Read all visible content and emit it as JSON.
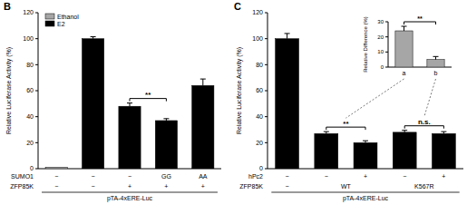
{
  "chart_data": [
    {
      "type": "bar",
      "title": "B",
      "ylabel": "Relative Luciferase Activity (%)",
      "categories": [
        null,
        null,
        null,
        null,
        null
      ],
      "series": [
        {
          "name": "Ethanol",
          "color": "#a6a6a6",
          "values": [
            1,
            null,
            null,
            null,
            null
          ],
          "errors": [
            null,
            null,
            null,
            null,
            null
          ]
        },
        {
          "name": "E2",
          "color": "#000000",
          "values": [
            null,
            100,
            48,
            37,
            64
          ],
          "errors": [
            null,
            1.5,
            2.5,
            1.5,
            5
          ]
        }
      ],
      "ylim": [
        0,
        120
      ],
      "yticks": [
        0,
        20,
        40,
        60,
        80,
        100,
        120
      ],
      "legend": "upper left",
      "annotations": [
        {
          "text": "**",
          "from": 2,
          "to": 3
        }
      ],
      "conditions": [
        {
          "label": "SUMO1",
          "values": [
            "−",
            "−",
            "−",
            "GG",
            "AA"
          ]
        },
        {
          "label": "ZFP85K",
          "values": [
            "−",
            "−",
            "+",
            "+",
            "+"
          ]
        }
      ],
      "construct": "pTA-4xERE-Luc"
    },
    {
      "type": "bar",
      "title": "C",
      "ylabel": "Relative Luciferase Activity (%)",
      "categories": [
        null,
        null,
        null,
        null,
        null
      ],
      "values": [
        100,
        27,
        20,
        28,
        27
      ],
      "errors": [
        4,
        1.5,
        1.5,
        1.5,
        1.5
      ],
      "color": "#000000",
      "ylim": [
        0,
        120
      ],
      "yticks": [
        0,
        20,
        40,
        60,
        80,
        100,
        120
      ],
      "annotations": [
        {
          "text": "**",
          "from": 1,
          "to": 2
        },
        {
          "text": "n.s.",
          "from": 3,
          "to": 4
        }
      ],
      "conditions": [
        {
          "label": "hPc2",
          "values": [
            "−",
            "−",
            "+",
            "−",
            "+"
          ]
        },
        {
          "label": "ZFP85K",
          "cells": [
            {
              "text": "−",
              "from": 0,
              "to": 0
            },
            {
              "text": "WT",
              "from": 1,
              "to": 2
            },
            {
              "text": "K567R",
              "from": 3,
              "to": 4
            }
          ]
        }
      ],
      "construct": "pTA-4xERE-Luc"
    },
    {
      "type": "bar",
      "ylabel": "Relative Difference (%)",
      "categories": [
        "a",
        "b"
      ],
      "values": [
        24,
        5
      ],
      "errors": [
        3,
        2
      ],
      "color": "#a6a6a6",
      "ylim": [
        0,
        30
      ],
      "yticks": [
        0,
        10,
        20,
        30
      ],
      "annotations": [
        {
          "text": "**",
          "from": 0,
          "to": 1
        }
      ]
    }
  ]
}
